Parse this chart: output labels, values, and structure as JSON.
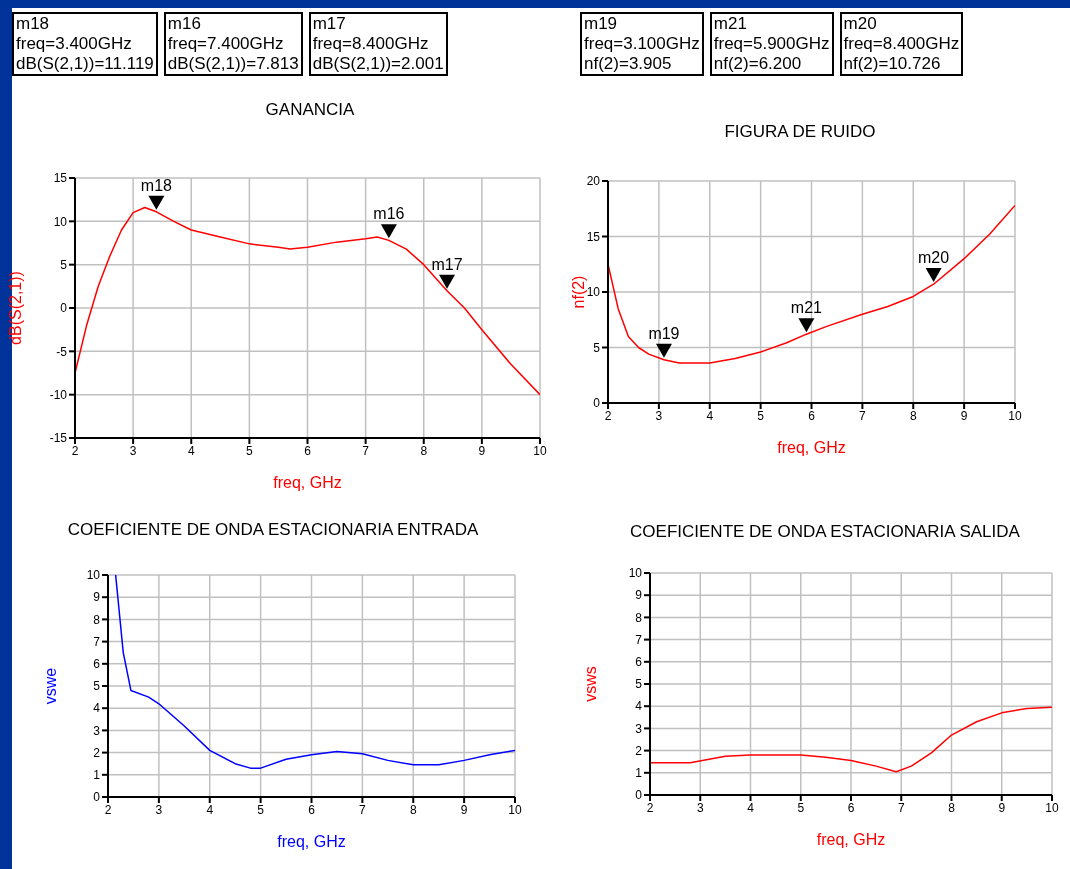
{
  "chart_data": [
    {
      "type": "line",
      "title": "GANANCIA",
      "xlabel": "freq, GHz",
      "ylabel": "dB(S(2,1))",
      "xlim": [
        2,
        10
      ],
      "ylim": [
        -15,
        15
      ],
      "xticks": [
        2,
        3,
        4,
        5,
        6,
        7,
        8,
        9,
        10
      ],
      "yticks": [
        -15,
        -10,
        -5,
        0,
        5,
        10,
        15
      ],
      "grid": true,
      "annotations": [
        "m18\nfreq=3.400GHz\ndB(S(2,1))=11.119",
        "m16\nfreq=7.400GHz\ndB(S(2,1))=7.813",
        "m17\nfreq=8.400GHz\ndB(S(2,1))=2.001",
        {
          "text": "m18",
          "x": 3.4,
          "y": 11.119
        },
        {
          "text": "m16",
          "x": 7.4,
          "y": 7.813
        },
        {
          "text": "m17",
          "x": 8.4,
          "y": 2.001
        }
      ],
      "series": [
        {
          "color": "#ff0000",
          "x": [
            2,
            2.2,
            2.4,
            2.6,
            2.8,
            3,
            3.2,
            3.4,
            3.7,
            4,
            4.5,
            5,
            5.5,
            5.7,
            6,
            6.5,
            7,
            7.2,
            7.4,
            7.7,
            8,
            8.4,
            8.7,
            9,
            9.5,
            10
          ],
          "values": [
            -7.5,
            -2,
            2.5,
            6,
            9,
            11,
            11.6,
            11.1,
            10,
            9,
            8.2,
            7.4,
            7,
            6.8,
            7,
            7.6,
            8,
            8.2,
            7.8,
            6.8,
            5,
            2,
            0,
            -2.5,
            -6.5,
            -10
          ]
        }
      ]
    },
    {
      "type": "line",
      "title": "FIGURA DE RUIDO",
      "xlabel": "freq, GHz",
      "ylabel": "nf(2)",
      "xlim": [
        2,
        10
      ],
      "ylim": [
        0,
        20
      ],
      "xticks": [
        2,
        3,
        4,
        5,
        6,
        7,
        8,
        9,
        10
      ],
      "yticks": [
        0,
        5,
        10,
        15,
        20
      ],
      "grid": true,
      "annotations": [
        "m19\nfreq=3.100GHz\nnf(2)=3.905",
        "m21\nfreq=5.900GHz\nnf(2)=6.200",
        "m20\nfreq=8.400GHz\nnf(2)=10.726",
        {
          "text": "m19",
          "x": 3.1,
          "y": 3.905
        },
        {
          "text": "m21",
          "x": 5.9,
          "y": 6.2
        },
        {
          "text": "m20",
          "x": 8.4,
          "y": 10.726
        }
      ],
      "series": [
        {
          "color": "#ff0000",
          "x": [
            2,
            2.2,
            2.4,
            2.6,
            2.8,
            3.1,
            3.4,
            4,
            4.5,
            5,
            5.5,
            5.9,
            6.3,
            7,
            7.5,
            8,
            8.4,
            9,
            9.5,
            10
          ],
          "values": [
            12.5,
            8.5,
            6,
            5,
            4.4,
            3.9,
            3.6,
            3.6,
            4,
            4.6,
            5.4,
            6.2,
            6.9,
            8,
            8.7,
            9.6,
            10.7,
            13,
            15.2,
            17.8
          ]
        }
      ]
    },
    {
      "type": "line",
      "title": "COEFICIENTE DE ONDA ESTACIONARIA ENTRADA",
      "xlabel": "freq, GHz",
      "ylabel": "vswe",
      "xlim": [
        2,
        10
      ],
      "ylim": [
        0,
        10
      ],
      "xticks": [
        2,
        3,
        4,
        5,
        6,
        7,
        8,
        9,
        10
      ],
      "yticks": [
        0,
        1,
        2,
        3,
        4,
        5,
        6,
        7,
        8,
        9,
        10
      ],
      "grid": true,
      "series": [
        {
          "color": "#0000ff",
          "x": [
            2.15,
            2.3,
            2.45,
            2.8,
            3,
            3.5,
            4,
            4.5,
            4.8,
            5,
            5.5,
            6,
            6.5,
            7,
            7.5,
            8,
            8.5,
            9,
            9.5,
            10
          ],
          "values": [
            10,
            6.5,
            4.8,
            4.5,
            4.2,
            3.2,
            2.1,
            1.5,
            1.3,
            1.3,
            1.7,
            1.9,
            2.05,
            1.95,
            1.65,
            1.45,
            1.45,
            1.65,
            1.9,
            2.1
          ]
        }
      ]
    },
    {
      "type": "line",
      "title": "COEFICIENTE DE ONDA ESTACIONARIA SALIDA",
      "xlabel": "freq, GHz",
      "ylabel": "vsws",
      "xlim": [
        2,
        10
      ],
      "ylim": [
        0,
        10
      ],
      "xticks": [
        2,
        3,
        4,
        5,
        6,
        7,
        8,
        9,
        10
      ],
      "yticks": [
        0,
        1,
        2,
        3,
        4,
        5,
        6,
        7,
        8,
        9,
        10
      ],
      "grid": true,
      "series": [
        {
          "color": "#ff0000",
          "x": [
            2,
            2.8,
            3.5,
            4,
            5,
            5.5,
            6,
            6.5,
            6.9,
            7.2,
            7.6,
            8,
            8.5,
            9,
            9.5,
            10
          ],
          "values": [
            1.45,
            1.45,
            1.75,
            1.8,
            1.8,
            1.7,
            1.55,
            1.3,
            1.05,
            1.3,
            1.9,
            2.7,
            3.3,
            3.7,
            3.9,
            3.95
          ]
        }
      ]
    }
  ]
}
